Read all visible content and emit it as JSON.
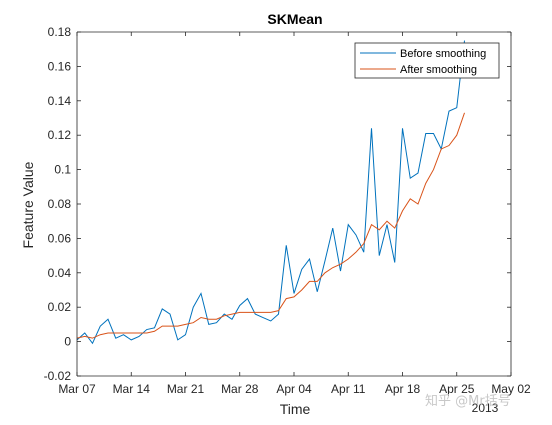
{
  "chart_data": {
    "type": "line",
    "title": "SKMean",
    "xlabel": "Time",
    "ylabel": "Feature Value",
    "x_ticks": [
      "Mar 07",
      "Mar 14",
      "Mar 21",
      "Mar 28",
      "Apr 04",
      "Apr 11",
      "Apr 18",
      "Apr 25",
      "May 02"
    ],
    "x_tick_day_offsets": [
      0,
      7,
      14,
      21,
      28,
      35,
      42,
      49,
      56
    ],
    "year_label": "2013",
    "ylim": [
      -0.02,
      0.18
    ],
    "y_ticks": [
      "-0.02",
      "0",
      "0.02",
      "0.04",
      "0.06",
      "0.08",
      "0.1",
      "0.12",
      "0.14",
      "0.16",
      "0.18"
    ],
    "y_tick_values": [
      -0.02,
      0,
      0.02,
      0.04,
      0.06,
      0.08,
      0.1,
      0.12,
      0.14,
      0.16,
      0.18
    ],
    "legend_position": "top-right",
    "grid": false,
    "x": [
      "Mar 07",
      "Mar 08",
      "Mar 09",
      "Mar 10",
      "Mar 11",
      "Mar 12",
      "Mar 13",
      "Mar 14",
      "Mar 15",
      "Mar 16",
      "Mar 17",
      "Mar 18",
      "Mar 19",
      "Mar 20",
      "Mar 21",
      "Mar 22",
      "Mar 23",
      "Mar 24",
      "Mar 25",
      "Mar 26",
      "Mar 27",
      "Mar 28",
      "Mar 29",
      "Mar 30",
      "Mar 31",
      "Apr 01",
      "Apr 02",
      "Apr 03",
      "Apr 04",
      "Apr 05",
      "Apr 06",
      "Apr 07",
      "Apr 08",
      "Apr 09",
      "Apr 10",
      "Apr 11",
      "Apr 12",
      "Apr 13",
      "Apr 14",
      "Apr 15",
      "Apr 16",
      "Apr 17",
      "Apr 18",
      "Apr 19",
      "Apr 20",
      "Apr 21",
      "Apr 22",
      "Apr 23",
      "Apr 24",
      "Apr 25",
      "Apr 26",
      "Apr 27",
      "Apr 28"
    ],
    "series": [
      {
        "name": "Before smoothing",
        "color": "#0072BD",
        "values": [
          0.001,
          0.005,
          -0.001,
          0.009,
          0.013,
          0.002,
          0.004,
          0.001,
          0.003,
          0.007,
          0.008,
          0.019,
          0.016,
          0.001,
          0.004,
          0.02,
          0.028,
          0.01,
          0.011,
          0.016,
          0.013,
          0.021,
          0.025,
          0.016,
          0.014,
          0.012,
          0.016,
          0.056,
          0.028,
          0.042,
          0.048,
          0.029,
          0.047,
          0.066,
          0.041,
          0.068,
          0.062,
          0.052,
          0.124,
          0.05,
          0.068,
          0.046,
          0.124,
          0.095,
          0.098,
          0.121,
          0.121,
          0.112,
          0.134,
          0.136,
          0.175,
          null,
          null
        ]
      },
      {
        "name": "After smoothing",
        "color": "#D95319",
        "values": [
          0.002,
          0.003,
          0.002,
          0.004,
          0.005,
          0.005,
          0.005,
          0.005,
          0.005,
          0.005,
          0.006,
          0.009,
          0.009,
          0.009,
          0.01,
          0.011,
          0.014,
          0.013,
          0.013,
          0.015,
          0.016,
          0.017,
          0.017,
          0.017,
          0.017,
          0.017,
          0.018,
          0.025,
          0.026,
          0.03,
          0.035,
          0.035,
          0.04,
          0.043,
          0.045,
          0.048,
          0.052,
          0.057,
          0.068,
          0.065,
          0.07,
          0.066,
          0.076,
          0.083,
          0.08,
          0.092,
          0.1,
          0.112,
          0.114,
          0.12,
          0.133,
          null,
          null
        ]
      }
    ]
  },
  "watermark": "知乎 @Mr括号"
}
